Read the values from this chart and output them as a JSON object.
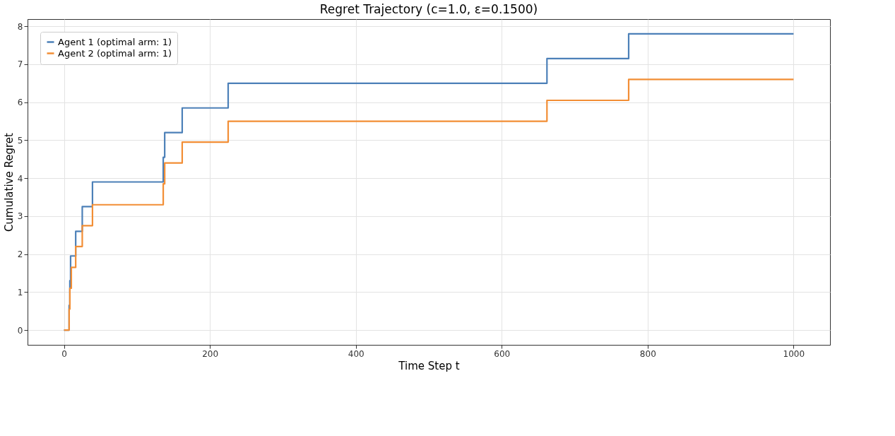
{
  "chart_data": {
    "type": "step",
    "title": "Regret Trajectory (c=1.0, ε=0.1500)",
    "xlabel": "Time Step t",
    "ylabel": "Cumulative Regret",
    "xlim": [
      -50,
      1050
    ],
    "ylim": [
      -0.39,
      8.19
    ],
    "xticks": [
      0,
      200,
      400,
      600,
      800,
      1000
    ],
    "yticks": [
      0,
      1,
      2,
      3,
      4,
      5,
      6,
      7,
      8
    ],
    "grid": true,
    "legend": "top left",
    "series": [
      {
        "name": "Agent 1 (optimal arm: 1)",
        "color": "#4c80b8",
        "x": [
          0,
          7,
          8,
          9,
          11,
          16,
          25,
          39,
          136,
          138,
          162,
          225,
          662,
          774,
          1000
        ],
        "values": [
          0,
          0.65,
          1.3,
          1.95,
          1.95,
          2.6,
          3.25,
          3.9,
          4.55,
          5.2,
          5.85,
          6.5,
          7.15,
          7.8,
          7.8
        ]
      },
      {
        "name": "Agent 2 (optimal arm: 1)",
        "color": "#f28e35",
        "x": [
          0,
          7,
          8,
          10,
          11,
          16,
          25,
          39,
          136,
          138,
          162,
          225,
          662,
          774,
          1000
        ],
        "values": [
          0,
          0.55,
          1.1,
          1.65,
          1.65,
          2.2,
          2.75,
          3.3,
          3.85,
          4.4,
          4.95,
          5.5,
          6.05,
          6.6,
          6.6
        ]
      }
    ]
  }
}
